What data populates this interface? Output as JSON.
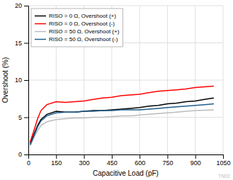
{
  "chart_data": {
    "type": "line",
    "xlabel": "Capacitive Load (pF)",
    "ylabel": "Overshoot (%)",
    "xlim": [
      0,
      1050
    ],
    "ylim": [
      0,
      20
    ],
    "xticks": [
      0,
      150,
      300,
      450,
      600,
      750,
      900,
      1050
    ],
    "yticks": [
      0,
      5,
      10,
      15,
      20
    ],
    "grid": true,
    "legend": "upper left",
    "annotations": [
      "TN01"
    ],
    "x": [
      10,
      22,
      35,
      50,
      68,
      100,
      150,
      200,
      250,
      300,
      350,
      400,
      450,
      500,
      550,
      600,
      650,
      700,
      750,
      800,
      850,
      900,
      950,
      1000
    ],
    "series": [
      {
        "name": "RISO = 0 Ω, Overshoot (+)",
        "color": "#000000",
        "values": [
          1.5,
          2.2,
          3.0,
          3.9,
          4.7,
          5.4,
          5.8,
          5.7,
          5.7,
          5.8,
          5.9,
          5.9,
          6.0,
          6.1,
          6.2,
          6.3,
          6.5,
          6.6,
          6.8,
          6.9,
          7.1,
          7.2,
          7.4,
          7.6
        ]
      },
      {
        "name": "RISO = 0 Ω, Overshoot (-)",
        "color": "#ff0000",
        "values": [
          1.7,
          2.6,
          3.6,
          4.8,
          5.9,
          6.7,
          7.1,
          7.0,
          7.1,
          7.2,
          7.4,
          7.6,
          7.7,
          7.9,
          8.0,
          8.1,
          8.3,
          8.5,
          8.6,
          8.7,
          8.8,
          9.0,
          9.1,
          9.2
        ]
      },
      {
        "name": "RISO = 50 Ω, Overshoot (+)",
        "color": "#bbbbbb",
        "values": [
          1.2,
          1.8,
          2.5,
          3.2,
          3.9,
          4.4,
          4.7,
          4.8,
          4.9,
          4.9,
          5.0,
          5.0,
          5.1,
          5.2,
          5.2,
          5.3,
          5.4,
          5.5,
          5.6,
          5.7,
          5.8,
          5.9,
          5.95,
          6.0
        ]
      },
      {
        "name": "RISO = 50 Ω, Overshoot (-)",
        "color": "#1f5c8b",
        "values": [
          1.3,
          2.0,
          2.8,
          3.7,
          4.5,
          5.2,
          5.6,
          5.7,
          5.7,
          5.8,
          5.8,
          5.9,
          5.9,
          6.0,
          6.0,
          6.0,
          6.1,
          6.2,
          6.3,
          6.4,
          6.5,
          6.6,
          6.7,
          6.8
        ]
      }
    ]
  }
}
